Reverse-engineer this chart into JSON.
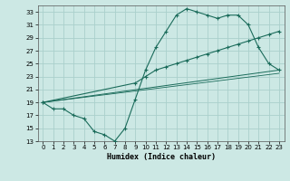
{
  "bg_color": "#cce8e4",
  "grid_color": "#aad0cc",
  "line_color": "#1a6b5a",
  "xlabel": "Humidex (Indice chaleur)",
  "xlim": [
    -0.5,
    23.5
  ],
  "ylim": [
    13,
    34
  ],
  "yticks": [
    13,
    15,
    17,
    19,
    21,
    23,
    25,
    27,
    29,
    31,
    33
  ],
  "xticks": [
    0,
    1,
    2,
    3,
    4,
    5,
    6,
    7,
    8,
    9,
    10,
    11,
    12,
    13,
    14,
    15,
    16,
    17,
    18,
    19,
    20,
    21,
    22,
    23
  ],
  "line1_x": [
    0,
    1,
    2,
    3,
    4,
    5,
    6,
    7,
    8,
    9,
    10,
    11,
    12,
    13,
    14,
    15,
    16,
    17,
    18,
    19,
    20,
    21,
    22,
    23
  ],
  "line1_y": [
    19,
    18,
    18,
    17,
    16.5,
    14.5,
    14,
    13,
    15,
    19.5,
    24,
    27.5,
    30,
    32.5,
    33.5,
    33,
    32.5,
    32,
    32.5,
    32.5,
    31,
    27.5,
    25,
    24
  ],
  "line2_x": [
    0,
    9,
    10,
    11,
    12,
    13,
    14,
    15,
    16,
    17,
    18,
    19,
    20,
    21,
    22,
    23
  ],
  "line2_y": [
    19,
    22,
    23,
    24,
    24.5,
    25,
    25.5,
    26,
    26.5,
    27,
    27.5,
    28,
    28.5,
    29,
    29.5,
    30
  ],
  "line3_x": [
    0,
    23
  ],
  "line3_y": [
    19,
    24
  ],
  "line4_x": [
    0,
    23
  ],
  "line4_y": [
    19,
    23.5
  ]
}
